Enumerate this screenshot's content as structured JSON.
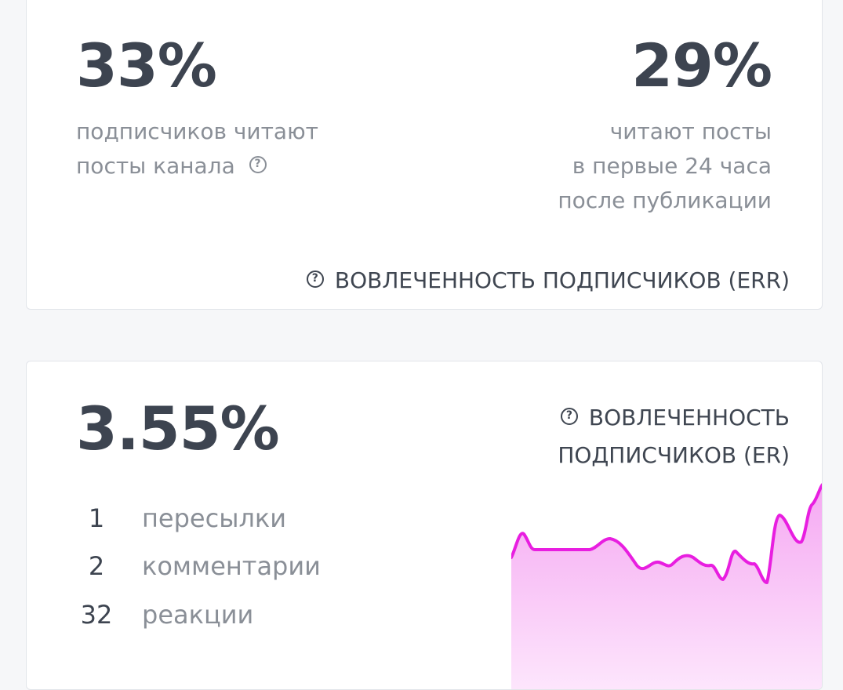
{
  "err_card": {
    "left_value": "33%",
    "left_desc": [
      "подписчиков читают",
      "посты канала"
    ],
    "right_value": "29%",
    "right_desc": [
      "читают посты",
      "в первые 24 часа",
      "после публикации"
    ],
    "metric_label": "ВОВЛЕЧЕННОСТЬ ПОДПИСЧИКОВ (ERR)",
    "help_icon": "question-circle-icon"
  },
  "er_card": {
    "value": "3.55%",
    "metric_label": [
      "ВОВЛЕЧЕННОСТЬ",
      "ПОДПИСЧИКОВ (ER)"
    ],
    "help_icon": "question-circle-icon",
    "stats": [
      {
        "count": "1",
        "label": "пересылки"
      },
      {
        "count": "2",
        "label": "комментарии"
      },
      {
        "count": "32",
        "label": "реакции"
      }
    ],
    "sparkline_color": "#e81ee0",
    "sparkline_fill_top": "#f5a8f2",
    "sparkline_fill_bottom": "#fde6fc"
  }
}
